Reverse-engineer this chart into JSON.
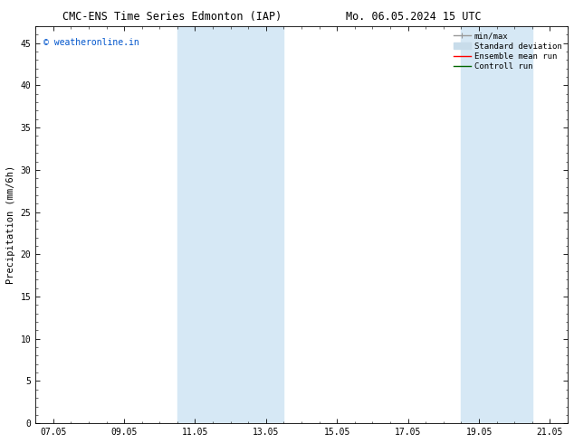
{
  "title_left": "CMC-ENS Time Series Edmonton (IAP)",
  "title_right": "Mo. 06.05.2024 15 UTC",
  "ylabel": "Precipitation (mm/6h)",
  "xlabel": "",
  "watermark": "© weatheronline.in",
  "watermark_color": "#0055cc",
  "x_tick_labels": [
    "07.05",
    "09.05",
    "11.05",
    "13.05",
    "15.05",
    "17.05",
    "19.05",
    "21.05"
  ],
  "x_tick_positions": [
    0,
    2,
    4,
    6,
    8,
    10,
    12,
    14
  ],
  "x_min": -0.5,
  "x_max": 14.5,
  "y_min": 0,
  "y_max": 47,
  "y_ticks": [
    0,
    5,
    10,
    15,
    20,
    25,
    30,
    35,
    40,
    45
  ],
  "shaded_regions": [
    {
      "x_start": 3.5,
      "x_end": 6.5,
      "color": "#d6e8f5",
      "alpha": 1.0
    },
    {
      "x_start": 11.5,
      "x_end": 13.5,
      "color": "#d6e8f5",
      "alpha": 1.0
    }
  ],
  "legend_items": [
    {
      "label": "min/max",
      "color": "#999999",
      "lw": 1.0,
      "ls": "-"
    },
    {
      "label": "Standard deviation",
      "color": "#c8dcea",
      "lw": 6,
      "ls": "-"
    },
    {
      "label": "Ensemble mean run",
      "color": "#ff0000",
      "lw": 1.0,
      "ls": "-"
    },
    {
      "label": "Controll run",
      "color": "#006600",
      "lw": 1.0,
      "ls": "-"
    }
  ],
  "background_color": "#ffffff",
  "tick_fontsize": 7,
  "label_fontsize": 7.5,
  "title_fontsize": 8.5,
  "watermark_fontsize": 7,
  "legend_fontsize": 6.5
}
